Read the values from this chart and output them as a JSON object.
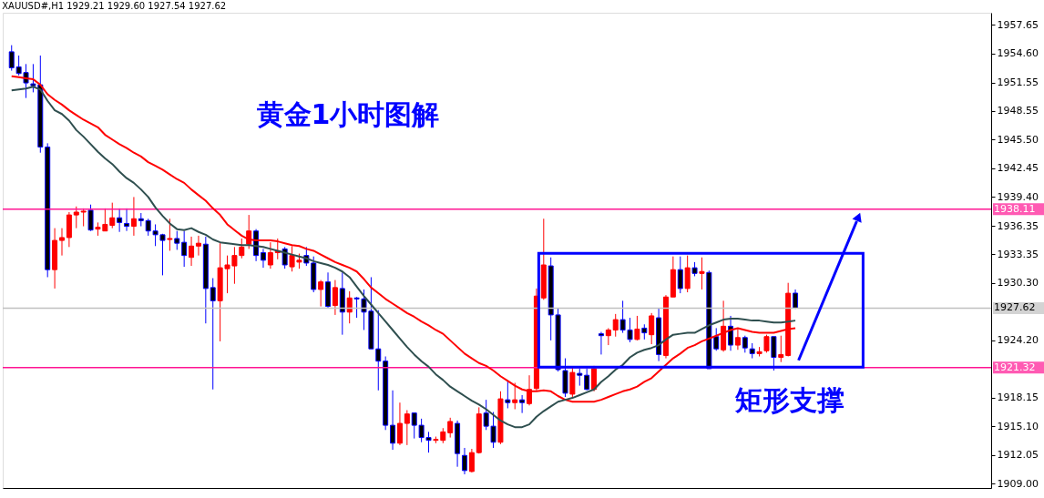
{
  "chart_data": {
    "type": "candlestick",
    "title": "XAUUSD#,H1  1929.21 1929.60 1927.54 1927.62",
    "categories": [
      null,
      null,
      null,
      null,
      null,
      null,
      null,
      null,
      null,
      null,
      null,
      null,
      null,
      null,
      null,
      null,
      null,
      null,
      null,
      null,
      null,
      null,
      null,
      null,
      null,
      null,
      null,
      null,
      null,
      null,
      null,
      null,
      null,
      null,
      null,
      null,
      null,
      null,
      null,
      null,
      null,
      null,
      null,
      null,
      null,
      null,
      null,
      null,
      null,
      null,
      null,
      null,
      null,
      null,
      null,
      null,
      null,
      null,
      null,
      null,
      null,
      null,
      null,
      null,
      null,
      null,
      null,
      null,
      null,
      null,
      null,
      null,
      null,
      null,
      null,
      null,
      null,
      null,
      null,
      null,
      null,
      null,
      null,
      null,
      null,
      null,
      null,
      null,
      null,
      null,
      null,
      null,
      null,
      null,
      null,
      null,
      null,
      null,
      null,
      null,
      null,
      null,
      null,
      null,
      null,
      null,
      null,
      null,
      null,
      null
    ],
    "ohlc": [
      [
        1954.8,
        1955.5,
        1952.8,
        1953.1
      ],
      [
        1953.2,
        1954.4,
        1952.3,
        1952.5
      ],
      [
        1952.6,
        1953.5,
        1949.9,
        1951.5
      ],
      [
        1951.4,
        1953.5,
        1950.5,
        1951.2
      ],
      [
        1951.3,
        1954.4,
        1944.1,
        1944.7
      ],
      [
        1944.7,
        1945.1,
        1930.9,
        1931.7
      ],
      [
        1931.7,
        1936.1,
        1929.7,
        1934.8
      ],
      [
        1934.8,
        1936.1,
        1933.2,
        1935.1
      ],
      [
        1935.1,
        1937.8,
        1934.1,
        1937.5
      ],
      [
        1937.5,
        1938.4,
        1936.1,
        1937.8
      ],
      [
        1937.8,
        1938.2,
        1936.3,
        1937.9
      ],
      [
        1938.0,
        1938.6,
        1935.8,
        1935.9
      ],
      [
        1936.0,
        1936.7,
        1935.3,
        1936.2
      ],
      [
        1935.8,
        1938.2,
        1935.8,
        1936.5
      ],
      [
        1936.4,
        1938.8,
        1936.1,
        1937.2
      ],
      [
        1937.2,
        1938.2,
        1935.7,
        1936.7
      ],
      [
        1936.6,
        1938.2,
        1935.8,
        1936.3
      ],
      [
        1936.3,
        1939.4,
        1935.3,
        1937.1
      ],
      [
        1937.1,
        1937.7,
        1936.3,
        1936.9
      ],
      [
        1936.9,
        1937.1,
        1935.3,
        1935.8
      ],
      [
        1935.8,
        1936.5,
        1934.2,
        1935.4
      ],
      [
        1935.4,
        1935.5,
        1931.1,
        1934.8
      ],
      [
        1934.9,
        1937.1,
        1933.7,
        1935.0
      ],
      [
        1935.0,
        1935.8,
        1933.8,
        1934.5
      ],
      [
        1934.6,
        1935.8,
        1932.0,
        1933.2
      ],
      [
        1933.0,
        1935.2,
        1932.1,
        1934.2
      ],
      [
        1934.2,
        1935.3,
        1933.2,
        1934.5
      ],
      [
        1934.4,
        1935.2,
        1926.0,
        1929.7
      ],
      [
        1929.8,
        1930.8,
        1919.0,
        1928.4
      ],
      [
        1928.4,
        1934.5,
        1924.1,
        1931.9
      ],
      [
        1931.8,
        1933.2,
        1929.2,
        1932.2
      ],
      [
        1932.1,
        1934.1,
        1930.2,
        1933.2
      ],
      [
        1933.2,
        1935.0,
        1932.9,
        1934.1
      ],
      [
        1934.4,
        1937.5,
        1933.9,
        1935.8
      ],
      [
        1935.8,
        1936.0,
        1932.6,
        1933.2
      ],
      [
        1933.5,
        1933.9,
        1931.9,
        1932.7
      ],
      [
        1932.2,
        1934.6,
        1931.8,
        1933.5
      ],
      [
        1933.5,
        1935.0,
        1932.8,
        1933.7
      ],
      [
        1933.9,
        1934.1,
        1931.8,
        1932.2
      ],
      [
        1932.0,
        1934.2,
        1931.5,
        1933.2
      ],
      [
        1932.5,
        1933.4,
        1931.8,
        1932.7
      ],
      [
        1933.2,
        1934.1,
        1932.1,
        1932.4
      ],
      [
        1932.4,
        1933.1,
        1929.3,
        1929.6
      ],
      [
        1929.6,
        1930.6,
        1927.8,
        1930.4
      ],
      [
        1930.4,
        1931.4,
        1927.6,
        1927.8
      ],
      [
        1927.9,
        1930.6,
        1926.9,
        1929.8
      ],
      [
        1929.7,
        1931.4,
        1924.8,
        1927.2
      ],
      [
        1927.2,
        1929.4,
        1926.0,
        1928.7
      ],
      [
        1928.7,
        1928.8,
        1926.6,
        1928.6
      ],
      [
        1928.6,
        1929.6,
        1925.3,
        1927.2
      ],
      [
        1927.3,
        1930.9,
        1923.3,
        1923.3
      ],
      [
        1923.3,
        1927.4,
        1918.9,
        1922.0
      ],
      [
        1922.0,
        1922.5,
        1914.7,
        1915.2
      ],
      [
        1915.2,
        1918.9,
        1912.6,
        1913.3
      ],
      [
        1913.3,
        1917.6,
        1913.1,
        1915.4
      ],
      [
        1915.4,
        1916.8,
        1913.1,
        1916.4
      ],
      [
        1916.5,
        1916.5,
        1913.8,
        1915.2
      ],
      [
        1915.2,
        1915.9,
        1913.4,
        1913.9
      ],
      [
        1913.9,
        1914.5,
        1912.3,
        1913.6
      ],
      [
        1913.6,
        1914.0,
        1913.3,
        1913.7
      ],
      [
        1913.6,
        1914.9,
        1913.3,
        1914.5
      ],
      [
        1914.4,
        1916.0,
        1913.9,
        1915.6
      ],
      [
        1915.4,
        1915.7,
        1910.8,
        1912.2
      ],
      [
        1912.0,
        1912.8,
        1910.0,
        1910.4
      ],
      [
        1910.3,
        1912.7,
        1910.2,
        1912.3
      ],
      [
        1912.3,
        1917.1,
        1912.2,
        1916.4
      ],
      [
        1916.5,
        1917.9,
        1914.7,
        1915.1
      ],
      [
        1915.1,
        1916.6,
        1912.8,
        1913.4
      ],
      [
        1913.4,
        1918.8,
        1913.2,
        1918.0
      ],
      [
        1917.9,
        1919.9,
        1917.0,
        1917.6
      ],
      [
        1917.6,
        1919.7,
        1916.9,
        1917.9
      ],
      [
        1917.9,
        1918.4,
        1916.5,
        1917.6
      ],
      [
        1917.5,
        1920.5,
        1917.3,
        1919.0
      ],
      [
        1919.1,
        1929.7,
        1918.9,
        1928.9
      ],
      [
        1928.7,
        1937.1,
        1928.5,
        1932.2
      ],
      [
        1932.1,
        1933.0,
        1924.2,
        1926.9
      ],
      [
        1926.9,
        1927.6,
        1920.9,
        1921.1
      ],
      [
        1921.0,
        1922.3,
        1918.2,
        1918.6
      ],
      [
        1918.5,
        1921.4,
        1918.2,
        1920.8
      ],
      [
        1920.7,
        1921.2,
        1919.4,
        1920.5
      ],
      [
        1920.5,
        1921.2,
        1918.9,
        1919.0
      ],
      [
        1919.0,
        1921.5,
        1918.8,
        1921.2
      ],
      [
        1924.9,
        1925.1,
        1922.7,
        1924.7
      ],
      [
        1924.7,
        1925.5,
        1923.7,
        1925.3
      ],
      [
        1925.3,
        1927.0,
        1924.6,
        1926.4
      ],
      [
        1926.4,
        1928.4,
        1925.0,
        1925.3
      ],
      [
        1925.3,
        1926.6,
        1924.0,
        1924.3
      ],
      [
        1924.3,
        1926.8,
        1924.2,
        1925.4
      ],
      [
        1925.5,
        1925.9,
        1924.3,
        1925.0
      ],
      [
        1924.8,
        1927.1,
        1923.8,
        1926.8
      ],
      [
        1926.6,
        1927.6,
        1922.0,
        1922.7
      ],
      [
        1922.6,
        1929.0,
        1922.3,
        1928.8
      ],
      [
        1928.8,
        1933.1,
        1928.8,
        1931.7
      ],
      [
        1931.7,
        1933.1,
        1929.2,
        1929.7
      ],
      [
        1929.7,
        1933.2,
        1929.3,
        1931.9
      ],
      [
        1931.9,
        1932.5,
        1931.0,
        1931.3
      ],
      [
        1931.3,
        1933.0,
        1929.6,
        1931.5
      ],
      [
        1931.4,
        1931.6,
        1921.2,
        1921.2
      ],
      [
        1924.6,
        1925.5,
        1923.1,
        1923.3
      ],
      [
        1923.2,
        1928.4,
        1923.0,
        1925.7
      ],
      [
        1925.7,
        1926.8,
        1923.1,
        1923.7
      ],
      [
        1923.7,
        1925.4,
        1923.2,
        1924.5
      ],
      [
        1924.5,
        1924.7,
        1922.9,
        1923.4
      ],
      [
        1923.3,
        1923.9,
        1922.3,
        1922.8
      ],
      [
        1922.8,
        1923.5,
        1922.5,
        1923.0
      ],
      [
        1923.1,
        1924.8,
        1922.9,
        1924.6
      ],
      [
        1924.6,
        1924.6,
        1921.0,
        1922.4
      ],
      [
        1922.4,
        1924.7,
        1921.9,
        1922.7
      ],
      [
        1922.6,
        1930.3,
        1922.5,
        1929.2
      ],
      [
        1929.21,
        1929.6,
        1927.54,
        1927.62
      ]
    ],
    "colors": [
      "#0000ff",
      "#0000ff",
      "#0000ff",
      "#0000ff",
      "#0000ff",
      "#0000ff",
      "#ff0000",
      "#ff0000",
      "#ff0000",
      "#ff0000",
      "#ff0000",
      "#0000ff",
      "#ff0000",
      "#ff0000",
      "#ff0000",
      "#0000ff",
      "#0000ff",
      "#ff0000",
      "#0000ff",
      "#0000ff",
      "#0000ff",
      "#0000ff",
      "#ff0000",
      "#0000ff",
      "#0000ff",
      "#ff0000",
      "#ff0000",
      "#0000ff",
      "#0000ff",
      "#ff0000",
      "#ff0000",
      "#ff0000",
      "#ff0000",
      "#ff0000",
      "#0000ff",
      "#0000ff",
      "#ff0000",
      "#ff0000",
      "#0000ff",
      "#ff0000",
      "#ff0000",
      "#0000ff",
      "#0000ff",
      "#ff0000",
      "#0000ff",
      "#ff0000",
      "#0000ff",
      "#ff0000",
      "#0000ff",
      "#0000ff",
      "#0000ff",
      "#0000ff",
      "#0000ff",
      "#0000ff",
      "#ff0000",
      "#ff0000",
      "#0000ff",
      "#0000ff",
      "#0000ff",
      "#ff0000",
      "#ff0000",
      "#ff0000",
      "#0000ff",
      "#0000ff",
      "#ff0000",
      "#ff0000",
      "#0000ff",
      "#0000ff",
      "#ff0000",
      "#0000ff",
      "#ff0000",
      "#0000ff",
      "#ff0000",
      "#ff0000",
      "#ff0000",
      "#0000ff",
      "#0000ff",
      "#0000ff",
      "#ff0000",
      "#0000ff",
      "#0000ff",
      "#ff0000",
      "#0000ff",
      "#ff0000",
      "#ff0000",
      "#0000ff",
      "#0000ff",
      "#ff0000",
      "#0000ff",
      "#ff0000",
      "#0000ff",
      "#ff0000",
      "#ff0000",
      "#0000ff",
      "#ff0000",
      "#0000ff",
      "#ff0000",
      "#0000ff",
      "#0000ff",
      "#ff0000",
      "#0000ff",
      "#ff0000",
      "#0000ff",
      "#0000ff",
      "#ff0000",
      "#ff0000",
      "#0000ff",
      "#ff0000",
      "#ff0000",
      "#0000ff"
    ],
    "series": [
      {
        "type": "line",
        "color": "#ff0000",
        "values": [
          1952.2,
          1952.1,
          1952.0,
          1951.9,
          1951.3,
          1950.3,
          1949.7,
          1949.2,
          1948.6,
          1948.1,
          1947.6,
          1947.2,
          1946.8,
          1946.0,
          1945.5,
          1945.0,
          1944.6,
          1944.1,
          1943.7,
          1943.1,
          1942.7,
          1942.3,
          1941.8,
          1941.3,
          1940.9,
          1940.2,
          1939.6,
          1939.0,
          1938.2,
          1937.5,
          1936.5,
          1935.9,
          1935.3,
          1934.9,
          1934.8,
          1934.8,
          1934.8,
          1934.7,
          1934.5,
          1934.3,
          1934.2,
          1933.9,
          1933.7,
          1933.3,
          1932.9,
          1932.5,
          1932.2,
          1931.9,
          1931.5,
          1930.7,
          1929.8,
          1929.2,
          1928.6,
          1928.1,
          1927.6,
          1927.1,
          1926.7,
          1926.2,
          1925.8,
          1925.3,
          1924.9,
          1924.2,
          1923.5,
          1922.8,
          1922.3,
          1921.8,
          1921.5,
          1921.0,
          1920.4,
          1919.9,
          1919.4,
          1919.0,
          1918.8,
          1918.8,
          1918.9,
          1918.8,
          1918.3,
          1917.9,
          1917.7,
          1917.7,
          1917.7,
          1917.7,
          1917.9,
          1918.2,
          1918.5,
          1918.8,
          1919.0,
          1919.3,
          1919.8,
          1920.2,
          1920.9,
          1921.6,
          1922.3,
          1922.8,
          1923.4,
          1923.7,
          1924.1,
          1924.4,
          1924.7,
          1925.0,
          1925.3,
          1925.5,
          1925.3,
          1925.1,
          1925.0,
          1925.0,
          1925.0,
          1925.2,
          1925.4,
          1925.5
        ]
      },
      {
        "type": "line",
        "color": "#2f4f4f",
        "values": [
          1950.7,
          1950.8,
          1950.9,
          1951.1,
          1950.8,
          1949.6,
          1948.6,
          1948.2,
          1947.5,
          1946.5,
          1945.8,
          1945.0,
          1944.2,
          1943.5,
          1942.9,
          1942.1,
          1941.4,
          1940.9,
          1940.2,
          1939.4,
          1938.3,
          1937.4,
          1936.6,
          1936.0,
          1935.9,
          1936.1,
          1935.7,
          1935.4,
          1934.9,
          1934.6,
          1934.5,
          1934.4,
          1934.3,
          1934.3,
          1934.2,
          1934.1,
          1933.9,
          1933.7,
          1933.5,
          1933.3,
          1933.1,
          1932.9,
          1932.6,
          1932.4,
          1932.2,
          1931.9,
          1931.5,
          1930.9,
          1929.9,
          1928.9,
          1928.0,
          1927.1,
          1926.2,
          1925.3,
          1924.4,
          1923.5,
          1922.7,
          1922.0,
          1921.4,
          1920.6,
          1920.0,
          1919.3,
          1918.8,
          1918.3,
          1917.8,
          1917.4,
          1916.9,
          1916.3,
          1915.7,
          1915.3,
          1915.0,
          1915.0,
          1915.3,
          1916.1,
          1916.7,
          1917.2,
          1917.7,
          1917.9,
          1918.1,
          1918.4,
          1918.7,
          1919.0,
          1919.8,
          1920.4,
          1921.1,
          1921.6,
          1922.4,
          1922.9,
          1923.2,
          1923.4,
          1923.7,
          1924.3,
          1924.8,
          1924.9,
          1925.0,
          1925.0,
          1925.4,
          1925.8,
          1926.1,
          1926.4,
          1926.5,
          1926.5,
          1926.4,
          1926.3,
          1926.3,
          1926.2,
          1926.1,
          1926.1,
          1926.2,
          1926.3
        ]
      }
    ],
    "ylim": [
      1908.55,
      1958.94
    ],
    "yticks": [
      1957.65,
      {
        "value": 1954.6,
        "label": "1954.60"
      },
      1951.55,
      1948.55,
      {
        "value": 1945.5,
        "label": "1945.50"
      },
      1942.45,
      {
        "value": 1939.4,
        "label": "1939.40"
      },
      1936.35,
      1933.35,
      {
        "value": 1930.3,
        "label": "1930.30"
      },
      {
        "value": 1924.2,
        "label": "1924.20"
      },
      1918.15,
      {
        "value": 1915.1,
        "label": "1915.10"
      },
      1912.05,
      {
        "value": 1909,
        "label": "1909.00"
      }
    ],
    "ref_lines": [
      {
        "axis": "y",
        "value": 1938.11,
        "label": "1938.11",
        "color": "#ff1493"
      },
      {
        "axis": "y",
        "value": 1921.32,
        "label": "1921.32",
        "color": "#ff1493"
      },
      {
        "axis": "y",
        "value": 1927.62,
        "label": "1927.62",
        "color": "#c0c0c0"
      }
    ],
    "annotations": [
      "黄金1小时图解",
      "矩形支撑"
    ],
    "tick_labels": "y",
    "grid": false
  }
}
